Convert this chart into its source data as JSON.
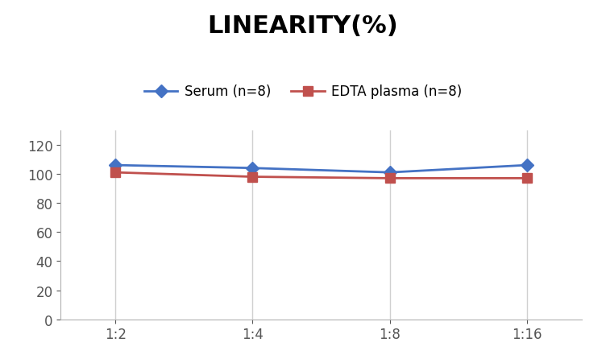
{
  "title": "LINEARITY(%)",
  "x_labels": [
    "1:2",
    "1:4",
    "1:8",
    "1:16"
  ],
  "x_positions": [
    0,
    1,
    2,
    3
  ],
  "serum_values": [
    106,
    104,
    101,
    106
  ],
  "edta_values": [
    101,
    98,
    97,
    97
  ],
  "serum_color": "#4472C4",
  "edta_color": "#C0504D",
  "serum_label": "Serum (n=8)",
  "edta_label": "EDTA plasma (n=8)",
  "ylim": [
    0,
    130
  ],
  "yticks": [
    0,
    20,
    40,
    60,
    80,
    100,
    120
  ],
  "title_fontsize": 22,
  "legend_fontsize": 12,
  "tick_fontsize": 12,
  "background_color": "#ffffff",
  "grid_color": "#d0d0d0",
  "marker_serum": "D",
  "marker_edta": "s",
  "marker_size": 8,
  "line_width": 2
}
